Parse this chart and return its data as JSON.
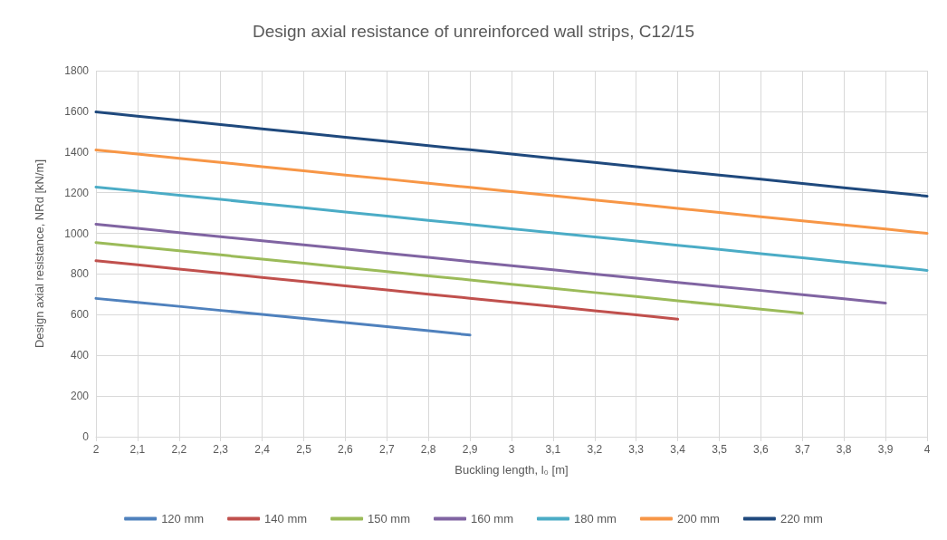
{
  "chart_data": {
    "type": "line",
    "title": "Design axial resistance of unreinforced wall strips, C12/15",
    "xlabel": "Buckling length, l₀ [m]",
    "ylabel": "Design axial resistance, NRd [kN/m]",
    "x": [
      2,
      2.1,
      2.2,
      2.3,
      2.4,
      2.5,
      2.6,
      2.7,
      2.8,
      2.9,
      3,
      3.1,
      3.2,
      3.3,
      3.4,
      3.5,
      3.6,
      3.7,
      3.8,
      3.9,
      4
    ],
    "series": [
      {
        "name": "120 mm",
        "color": "#4f81bd",
        "values": [
          680,
          660,
          641,
          621,
          601,
          581,
          561,
          541,
          521,
          500,
          null,
          null,
          null,
          null,
          null,
          null,
          null,
          null,
          null,
          null,
          null
        ]
      },
      {
        "name": "140 mm",
        "color": "#c0504d",
        "values": [
          865,
          845,
          824,
          804,
          783,
          763,
          742,
          722,
          701,
          681,
          660,
          640,
          619,
          599,
          578,
          null,
          null,
          null,
          null,
          null,
          null
        ]
      },
      {
        "name": "150 mm",
        "color": "#9bbb59",
        "values": [
          955,
          935,
          914,
          894,
          873,
          853,
          832,
          812,
          791,
          771,
          750,
          730,
          709,
          689,
          668,
          648,
          627,
          607,
          null,
          null,
          null
        ]
      },
      {
        "name": "160 mm",
        "color": "#8064a2",
        "values": [
          1045,
          1025,
          1004,
          984,
          963,
          943,
          923,
          902,
          882,
          861,
          841,
          821,
          800,
          780,
          759,
          739,
          719,
          698,
          678,
          657,
          null
        ]
      },
      {
        "name": "180 mm",
        "color": "#4bacc6",
        "values": [
          1228,
          1208,
          1187,
          1167,
          1146,
          1126,
          1105,
          1085,
          1064,
          1044,
          1023,
          1003,
          982,
          962,
          941,
          921,
          900,
          880,
          859,
          839,
          818
        ]
      },
      {
        "name": "200 mm",
        "color": "#f79646",
        "values": [
          1410,
          1390,
          1369,
          1349,
          1328,
          1308,
          1287,
          1267,
          1246,
          1226,
          1205,
          1185,
          1164,
          1144,
          1123,
          1103,
          1082,
          1062,
          1041,
          1021,
          1000
        ]
      },
      {
        "name": "220 mm",
        "color": "#1f497d",
        "values": [
          1597,
          1576,
          1556,
          1535,
          1514,
          1494,
          1473,
          1452,
          1431,
          1411,
          1390,
          1369,
          1349,
          1328,
          1307,
          1287,
          1266,
          1245,
          1224,
          1204,
          1183
        ]
      }
    ],
    "xlim": [
      2,
      4
    ],
    "xticks": [
      2,
      {
        "value": 2.1,
        "label": "2,1"
      },
      {
        "value": 2.2,
        "label": "2,2"
      },
      {
        "value": 2.3,
        "label": "2,3"
      },
      {
        "value": 2.4,
        "label": "2,4"
      },
      {
        "value": 2.5,
        "label": "2,5"
      },
      {
        "value": 2.6,
        "label": "2,6"
      },
      {
        "value": 2.7,
        "label": "2,7"
      },
      {
        "value": 2.8,
        "label": "2,8"
      },
      {
        "value": 2.9,
        "label": "2,9"
      },
      3,
      {
        "value": 3.1,
        "label": "3,1"
      },
      {
        "value": 3.2,
        "label": "3,2"
      },
      {
        "value": 3.3,
        "label": "3,3"
      },
      {
        "value": 3.4,
        "label": "3,4"
      },
      {
        "value": 3.5,
        "label": "3,5"
      },
      {
        "value": 3.6,
        "label": "3,6"
      },
      {
        "value": 3.7,
        "label": "3,7"
      },
      {
        "value": 3.8,
        "label": "3,8"
      },
      {
        "value": 3.9,
        "label": "3,9"
      },
      4
    ],
    "ylim": [
      0,
      1800
    ],
    "yticks": [
      0,
      200,
      400,
      600,
      800,
      1000,
      1200,
      1400,
      1600,
      1800
    ],
    "grid": true,
    "legend": "bottom",
    "marker": "none",
    "line_style": "solid"
  }
}
